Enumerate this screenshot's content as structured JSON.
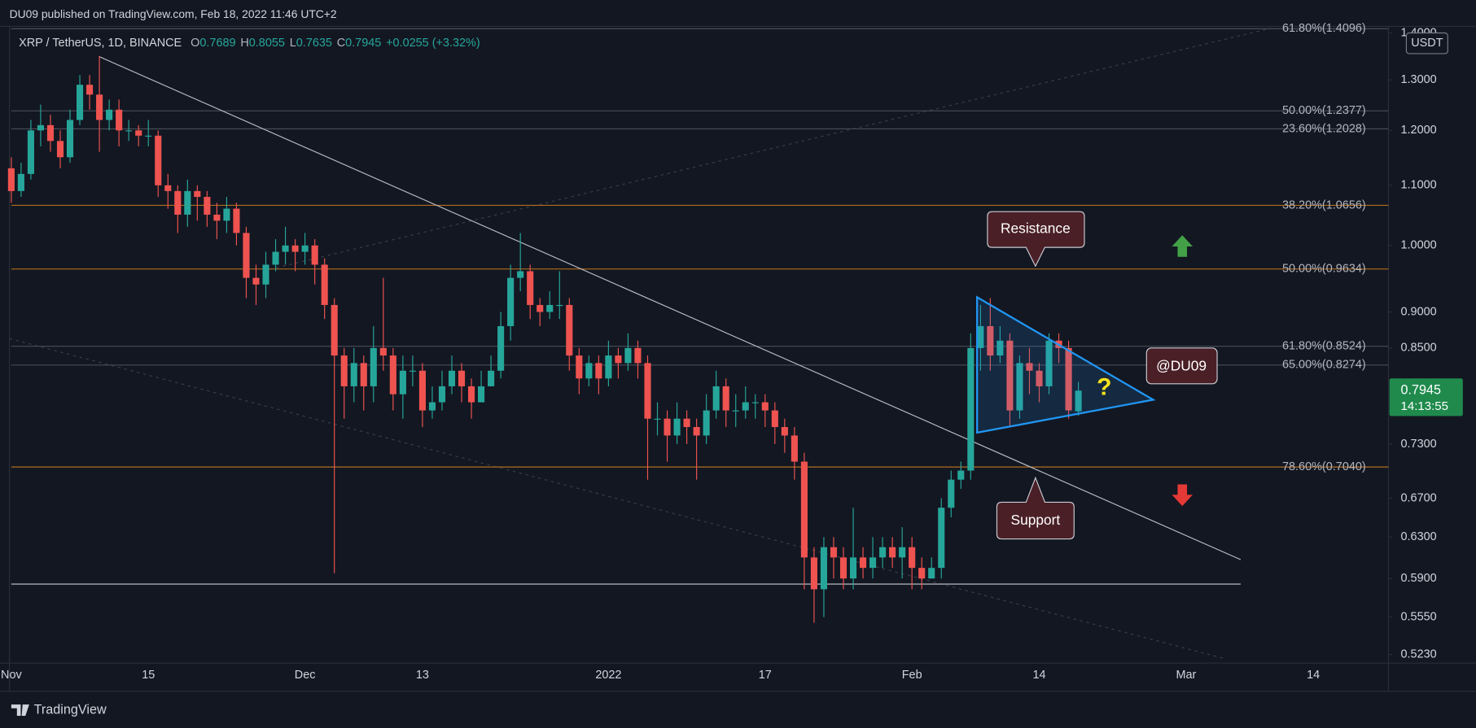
{
  "header": {
    "text": "DU09 published on TradingView.com, Feb 18, 2022 11:46 UTC+2"
  },
  "footer": {
    "brand": "TradingView"
  },
  "chart_data": {
    "type": "candlestick",
    "symbol": "XRP / TetherUS, 1D, BINANCE",
    "ohlc_legend": [
      {
        "label": "O",
        "value": "0.7689"
      },
      {
        "label": "H",
        "value": "0.8055"
      },
      {
        "label": "L",
        "value": "0.7635"
      },
      {
        "label": "C",
        "value": "0.7945"
      }
    ],
    "change": "+0.0255 (+3.32%)",
    "currency": "USDT",
    "up_color": "#26a69a",
    "down_color": "#ef5350",
    "log_scale": true,
    "grid": false,
    "ylim": [
      0.516,
      1.415
    ],
    "yticks": [
      {
        "value": 1.4,
        "label": "1.4000"
      },
      {
        "value": 1.3,
        "label": "1.3000"
      },
      {
        "value": 1.2,
        "label": "1.2000"
      },
      {
        "value": 1.1,
        "label": "1.1000"
      },
      {
        "value": 1.0,
        "label": "1.0000"
      },
      {
        "value": 0.9,
        "label": "0.9000"
      },
      {
        "value": 0.85,
        "label": "0.8500"
      },
      {
        "value": 0.73,
        "label": "0.7300"
      },
      {
        "value": 0.67,
        "label": "0.6700"
      },
      {
        "value": 0.63,
        "label": "0.6300"
      },
      {
        "value": 0.59,
        "label": "0.5900"
      },
      {
        "value": 0.555,
        "label": "0.5550"
      },
      {
        "value": 0.523,
        "label": "0.5230"
      }
    ],
    "price_tag": {
      "value": 0.7945,
      "countdown": "14:13:55",
      "color": "#1f8a4c"
    },
    "categories": [
      "Nov",
      null,
      null,
      null,
      null,
      null,
      null,
      null,
      null,
      null,
      null,
      null,
      null,
      null,
      "15",
      null,
      null,
      null,
      null,
      null,
      null,
      null,
      null,
      null,
      null,
      null,
      null,
      null,
      null,
      null,
      "Dec",
      null,
      null,
      null,
      null,
      null,
      null,
      null,
      null,
      null,
      null,
      null,
      "13",
      null,
      null,
      null,
      null,
      null,
      null,
      null,
      null,
      null,
      null,
      null,
      null,
      null,
      null,
      null,
      null,
      null,
      null,
      "2022",
      null,
      null,
      null,
      null,
      null,
      null,
      null,
      null,
      null,
      null,
      null,
      null,
      null,
      null,
      null,
      "17",
      null,
      null,
      null,
      null,
      null,
      null,
      null,
      null,
      null,
      null,
      null,
      null,
      null,
      null,
      "Feb",
      null,
      null,
      null,
      null,
      null,
      null,
      null,
      null,
      null,
      null,
      null,
      null,
      "14",
      null,
      null,
      null,
      null,
      null,
      null,
      null,
      null,
      null,
      null,
      null,
      null,
      null,
      null,
      "Mar",
      null,
      null,
      null,
      null,
      null,
      null,
      null,
      null,
      null,
      null,
      null,
      null,
      "14",
      null,
      null,
      null,
      null,
      null,
      null,
      null
    ],
    "ohlc": {
      "open": [
        1.13,
        1.09,
        1.12,
        1.2,
        1.21,
        1.18,
        1.15,
        1.22,
        1.29,
        1.27,
        1.22,
        1.24,
        1.2,
        1.2,
        1.19,
        1.19,
        1.1,
        1.09,
        1.05,
        1.09,
        1.08,
        1.05,
        1.04,
        1.06,
        1.02,
        0.95,
        0.94,
        0.97,
        0.99,
        1.0,
        0.99,
        1.0,
        0.97,
        0.91,
        0.84,
        0.8,
        0.83,
        0.8,
        0.85,
        0.84,
        0.79,
        0.82,
        0.82,
        0.77,
        0.78,
        0.8,
        0.82,
        0.8,
        0.78,
        0.8,
        0.82,
        0.88,
        0.95,
        0.96,
        0.91,
        0.9,
        0.91,
        0.91,
        0.84,
        0.81,
        0.83,
        0.81,
        0.84,
        0.83,
        0.85,
        0.83,
        0.76,
        0.76,
        0.74,
        0.76,
        0.75,
        0.74,
        0.77,
        0.8,
        0.77,
        0.77,
        0.78,
        0.78,
        0.77,
        0.75,
        0.74,
        0.71,
        0.61,
        0.58,
        0.62,
        0.61,
        0.59,
        0.61,
        0.6,
        0.61,
        0.62,
        0.61,
        0.62,
        0.6,
        0.59,
        0.6,
        0.66,
        0.69,
        0.7,
        0.85,
        0.88,
        0.84,
        0.86,
        0.77,
        0.83,
        0.82,
        0.8,
        0.86,
        0.85,
        0.7689,
        null,
        null,
        null,
        null,
        null,
        null,
        null,
        null,
        null,
        null,
        null,
        null,
        null,
        null,
        null,
        null,
        null,
        null,
        null,
        null,
        null,
        null,
        null,
        null,
        null,
        null,
        null,
        null,
        null,
        null,
        null
      ],
      "high": [
        1.15,
        1.14,
        1.22,
        1.25,
        1.23,
        1.2,
        1.24,
        1.31,
        1.31,
        1.35,
        1.26,
        1.26,
        1.22,
        1.21,
        1.22,
        1.2,
        1.12,
        1.1,
        1.11,
        1.1,
        1.09,
        1.07,
        1.08,
        1.07,
        1.03,
        0.97,
        0.99,
        1.01,
        1.03,
        1.01,
        1.02,
        1.01,
        0.98,
        0.92,
        0.85,
        0.85,
        0.84,
        0.88,
        0.95,
        0.85,
        0.84,
        0.84,
        0.83,
        0.8,
        0.82,
        0.84,
        0.83,
        0.81,
        0.82,
        0.84,
        0.9,
        0.97,
        1.02,
        0.97,
        0.92,
        0.93,
        0.96,
        0.92,
        0.85,
        0.84,
        0.84,
        0.86,
        0.85,
        0.87,
        0.86,
        0.84,
        0.78,
        0.77,
        0.78,
        0.77,
        0.76,
        0.79,
        0.82,
        0.81,
        0.79,
        0.8,
        0.79,
        0.79,
        0.78,
        0.76,
        0.75,
        0.72,
        0.62,
        0.63,
        0.63,
        0.62,
        0.66,
        0.62,
        0.63,
        0.63,
        0.63,
        0.64,
        0.63,
        0.61,
        0.61,
        0.67,
        0.7,
        0.71,
        0.87,
        0.91,
        0.92,
        0.88,
        0.87,
        0.84,
        0.85,
        0.83,
        0.87,
        0.87,
        0.86,
        0.8055,
        null,
        null,
        null,
        null,
        null,
        null,
        null,
        null,
        null,
        null,
        null,
        null,
        null,
        null,
        null,
        null,
        null,
        null,
        null,
        null,
        null,
        null,
        null,
        null,
        null,
        null,
        null,
        null,
        null,
        null,
        null
      ],
      "low": [
        1.07,
        1.08,
        1.11,
        1.17,
        1.16,
        1.13,
        1.14,
        1.21,
        1.24,
        1.16,
        1.2,
        1.17,
        1.18,
        1.17,
        1.17,
        1.08,
        1.06,
        1.02,
        1.03,
        1.04,
        1.03,
        1.01,
        1.02,
        1.0,
        0.92,
        0.91,
        0.92,
        0.96,
        0.97,
        0.96,
        0.97,
        0.94,
        0.89,
        0.595,
        0.76,
        0.78,
        0.77,
        0.78,
        0.82,
        0.77,
        0.76,
        0.8,
        0.75,
        0.76,
        0.77,
        0.79,
        0.78,
        0.76,
        0.78,
        0.8,
        0.81,
        0.86,
        0.93,
        0.89,
        0.88,
        0.89,
        0.89,
        0.82,
        0.79,
        0.8,
        0.79,
        0.8,
        0.81,
        0.82,
        0.81,
        0.69,
        0.74,
        0.71,
        0.73,
        0.73,
        0.69,
        0.73,
        0.76,
        0.75,
        0.75,
        0.76,
        0.76,
        0.75,
        0.73,
        0.72,
        0.69,
        0.58,
        0.55,
        0.555,
        0.59,
        0.58,
        0.58,
        0.59,
        0.59,
        0.6,
        0.6,
        0.59,
        0.58,
        0.58,
        0.59,
        0.59,
        0.65,
        0.68,
        0.69,
        0.82,
        0.82,
        0.83,
        0.75,
        0.76,
        0.79,
        0.78,
        0.79,
        0.83,
        0.76,
        0.7635,
        null,
        null,
        null,
        null,
        null,
        null,
        null,
        null,
        null,
        null,
        null,
        null,
        null,
        null,
        null,
        null,
        null,
        null,
        null,
        null,
        null,
        null,
        null,
        null,
        null,
        null,
        null,
        null,
        null,
        null,
        null
      ],
      "close": [
        1.09,
        1.12,
        1.2,
        1.21,
        1.18,
        1.15,
        1.22,
        1.29,
        1.27,
        1.22,
        1.24,
        1.2,
        1.2,
        1.19,
        1.19,
        1.1,
        1.09,
        1.05,
        1.09,
        1.08,
        1.05,
        1.04,
        1.06,
        1.02,
        0.95,
        0.94,
        0.97,
        0.99,
        1.0,
        0.99,
        1.0,
        0.97,
        0.91,
        0.84,
        0.8,
        0.83,
        0.8,
        0.85,
        0.84,
        0.79,
        0.82,
        0.82,
        0.77,
        0.78,
        0.8,
        0.82,
        0.8,
        0.78,
        0.8,
        0.82,
        0.88,
        0.95,
        0.96,
        0.91,
        0.9,
        0.91,
        0.91,
        0.84,
        0.81,
        0.83,
        0.81,
        0.84,
        0.83,
        0.85,
        0.83,
        0.76,
        0.76,
        0.74,
        0.76,
        0.75,
        0.74,
        0.77,
        0.8,
        0.77,
        0.77,
        0.78,
        0.78,
        0.77,
        0.75,
        0.74,
        0.71,
        0.61,
        0.58,
        0.62,
        0.61,
        0.59,
        0.61,
        0.6,
        0.61,
        0.62,
        0.61,
        0.62,
        0.6,
        0.59,
        0.6,
        0.66,
        0.69,
        0.7,
        0.85,
        0.88,
        0.84,
        0.86,
        0.77,
        0.83,
        0.82,
        0.8,
        0.86,
        0.85,
        0.77,
        0.7945,
        null,
        null,
        null,
        null,
        null,
        null,
        null,
        null,
        null,
        null,
        null,
        null,
        null,
        null,
        null,
        null,
        null,
        null,
        null,
        null,
        null,
        null,
        null,
        null,
        null,
        null,
        null,
        null,
        null,
        null,
        null
      ]
    },
    "levels": [
      {
        "value": 1.4096,
        "label": "61.80%(1.4096)",
        "color": "#4a4d57"
      },
      {
        "value": 1.2377,
        "label": "50.00%(1.2377)",
        "color": "#4a4d57"
      },
      {
        "value": 1.2028,
        "label": "23.60%(1.2028)",
        "color": "#4a4d57"
      },
      {
        "value": 1.0656,
        "label": "38.20%(1.0656)",
        "color": "#b26c1c"
      },
      {
        "value": 0.9634,
        "label": "50.00%(0.9634)",
        "color": "#b26c1c"
      },
      {
        "value": 0.8524,
        "label": "61.80%(0.8524)",
        "color": "#4a4d57"
      },
      {
        "value": 0.8274,
        "label": "65.00%(0.8274)",
        "color": "#4a4d57"
      },
      {
        "value": 0.704,
        "label": "78.60%(0.7040)",
        "color": "#b26c1c"
      }
    ],
    "annotations": {
      "resistance": "Resistance",
      "support": "Support",
      "author": "@DU09",
      "question": "?"
    }
  }
}
